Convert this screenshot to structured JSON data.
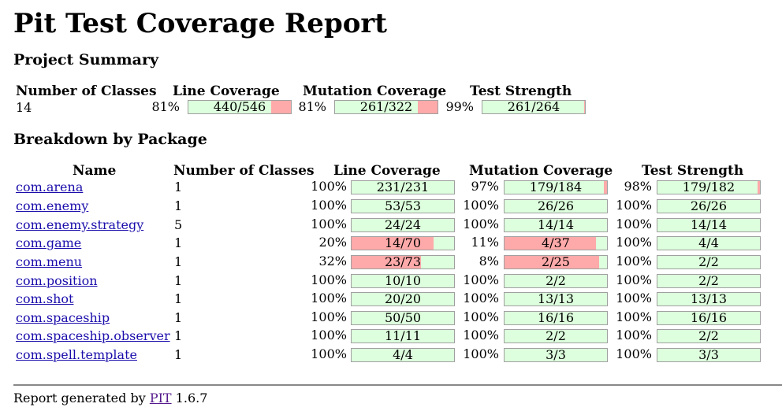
{
  "title": "Pit Test Coverage Report",
  "project_summary": {
    "heading": "Project Summary",
    "headers": [
      "Number of Classes",
      "Line Coverage",
      "Mutation Coverage",
      "Test Strength"
    ],
    "classes": "14",
    "line": {
      "pct": "81%",
      "text": "440/546",
      "fraction": 0.81
    },
    "mutation": {
      "pct": "81%",
      "text": "261/322",
      "fraction": 0.81
    },
    "strength": {
      "pct": "99%",
      "text": "261/264",
      "fraction": 0.99
    }
  },
  "breakdown": {
    "heading": "Breakdown by Package",
    "headers": [
      "Name",
      "Number of Classes",
      "Line Coverage",
      "Mutation Coverage",
      "Test Strength"
    ],
    "rows": [
      {
        "name": "com.arena",
        "classes": "1",
        "line": {
          "pct": "100%",
          "text": "231/231",
          "fraction": 1.0
        },
        "mutation": {
          "pct": "97%",
          "text": "179/184",
          "fraction": 0.97
        },
        "strength": {
          "pct": "98%",
          "text": "179/182",
          "fraction": 0.98
        }
      },
      {
        "name": "com.enemy",
        "classes": "1",
        "line": {
          "pct": "100%",
          "text": "53/53",
          "fraction": 1.0
        },
        "mutation": {
          "pct": "100%",
          "text": "26/26",
          "fraction": 1.0
        },
        "strength": {
          "pct": "100%",
          "text": "26/26",
          "fraction": 1.0
        }
      },
      {
        "name": "com.enemy.strategy",
        "classes": "5",
        "line": {
          "pct": "100%",
          "text": "24/24",
          "fraction": 1.0
        },
        "mutation": {
          "pct": "100%",
          "text": "14/14",
          "fraction": 1.0
        },
        "strength": {
          "pct": "100%",
          "text": "14/14",
          "fraction": 1.0
        }
      },
      {
        "name": "com.game",
        "classes": "1",
        "line": {
          "pct": "20%",
          "text": "14/70",
          "fraction": 0.2
        },
        "mutation": {
          "pct": "11%",
          "text": "4/37",
          "fraction": 0.11
        },
        "strength": {
          "pct": "100%",
          "text": "4/4",
          "fraction": 1.0
        }
      },
      {
        "name": "com.menu",
        "classes": "1",
        "line": {
          "pct": "32%",
          "text": "23/73",
          "fraction": 0.32
        },
        "mutation": {
          "pct": "8%",
          "text": "2/25",
          "fraction": 0.08
        },
        "strength": {
          "pct": "100%",
          "text": "2/2",
          "fraction": 1.0
        }
      },
      {
        "name": "com.position",
        "classes": "1",
        "line": {
          "pct": "100%",
          "text": "10/10",
          "fraction": 1.0
        },
        "mutation": {
          "pct": "100%",
          "text": "2/2",
          "fraction": 1.0
        },
        "strength": {
          "pct": "100%",
          "text": "2/2",
          "fraction": 1.0
        }
      },
      {
        "name": "com.shot",
        "classes": "1",
        "line": {
          "pct": "100%",
          "text": "20/20",
          "fraction": 1.0
        },
        "mutation": {
          "pct": "100%",
          "text": "13/13",
          "fraction": 1.0
        },
        "strength": {
          "pct": "100%",
          "text": "13/13",
          "fraction": 1.0
        }
      },
      {
        "name": "com.spaceship",
        "classes": "1",
        "line": {
          "pct": "100%",
          "text": "50/50",
          "fraction": 1.0
        },
        "mutation": {
          "pct": "100%",
          "text": "16/16",
          "fraction": 1.0
        },
        "strength": {
          "pct": "100%",
          "text": "16/16",
          "fraction": 1.0
        }
      },
      {
        "name": "com.spaceship.observer",
        "classes": "1",
        "line": {
          "pct": "100%",
          "text": "11/11",
          "fraction": 1.0
        },
        "mutation": {
          "pct": "100%",
          "text": "2/2",
          "fraction": 1.0
        },
        "strength": {
          "pct": "100%",
          "text": "2/2",
          "fraction": 1.0
        }
      },
      {
        "name": "com.spell.template",
        "classes": "1",
        "line": {
          "pct": "100%",
          "text": "4/4",
          "fraction": 1.0
        },
        "mutation": {
          "pct": "100%",
          "text": "3/3",
          "fraction": 1.0
        },
        "strength": {
          "pct": "100%",
          "text": "3/3",
          "fraction": 1.0
        }
      }
    ]
  },
  "footer": {
    "prefix": "Report generated by ",
    "link": "PIT",
    "version": " 1.6.7"
  },
  "colors": {
    "covered": "#ddffdd",
    "uncovered": "#ffaaaa",
    "link": "#1a0dab",
    "visited_link": "#551a8b"
  }
}
